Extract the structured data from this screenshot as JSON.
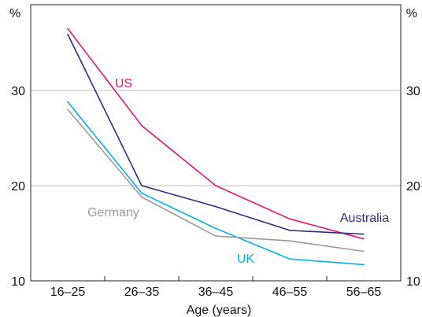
{
  "chart_data": {
    "type": "line",
    "title": "",
    "xlabel": "Age (years)",
    "ylabel_left": "%",
    "ylabel_right": "%",
    "categories": [
      "16–25",
      "26–35",
      "36–45",
      "46–55",
      "56–65"
    ],
    "ylim": [
      10,
      39
    ],
    "yticks": [
      "10",
      "20",
      "30"
    ],
    "grid": true,
    "legend": "inline labels",
    "series": [
      {
        "name": "US",
        "color": "#e0137a",
        "values": [
          36.5,
          26.3,
          20.0,
          16.5,
          14.4
        ]
      },
      {
        "name": "Australia",
        "color": "#2d2e83",
        "values": [
          35.9,
          20.0,
          17.8,
          15.3,
          14.9
        ]
      },
      {
        "name": "UK",
        "color": "#00aeef",
        "values": [
          28.8,
          19.2,
          15.5,
          12.3,
          11.7
        ]
      },
      {
        "name": "Germany",
        "color": "#999999",
        "values": [
          28.0,
          18.8,
          14.7,
          14.2,
          13.1
        ]
      }
    ]
  }
}
